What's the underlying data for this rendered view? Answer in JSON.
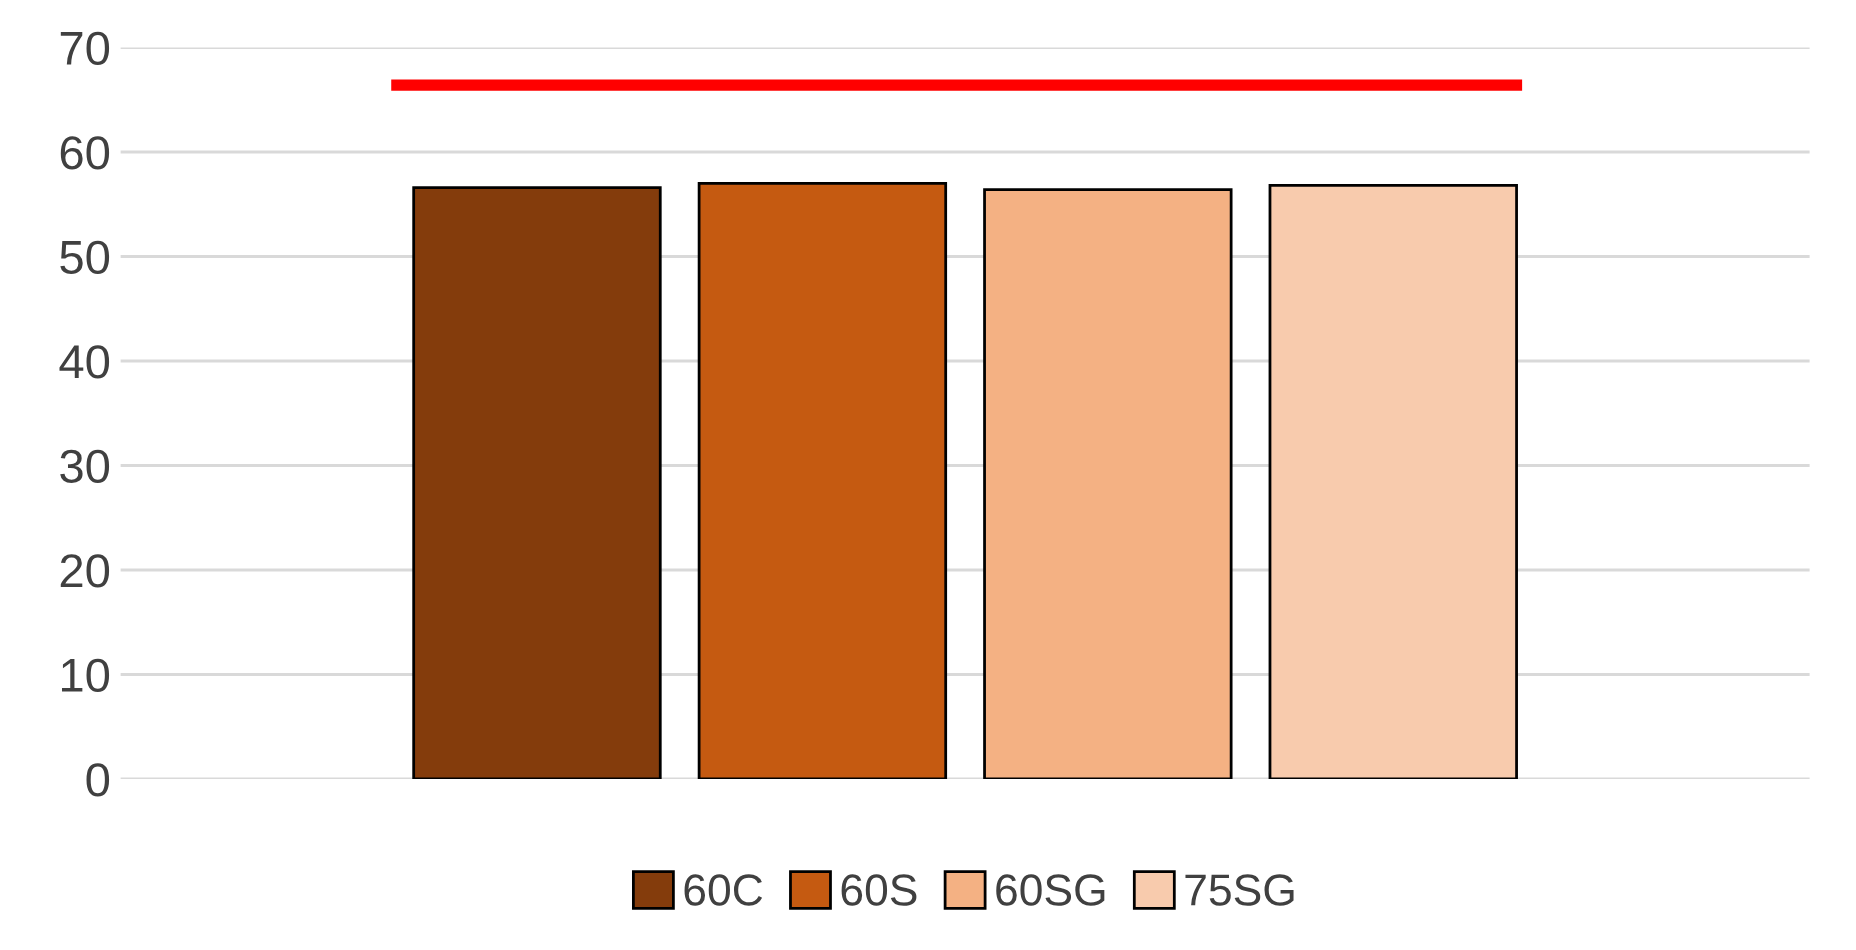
{
  "chart_data": {
    "type": "bar",
    "categories": [
      null
    ],
    "series": [
      {
        "name": "60C",
        "color": "#843c0c",
        "values": [
          56.6
        ]
      },
      {
        "name": "60S",
        "color": "#c55a11",
        "values": [
          57.0
        ]
      },
      {
        "name": "60SG",
        "color": "#f4b183",
        "values": [
          56.4
        ]
      },
      {
        "name": "75SG",
        "color": "#f8cbad",
        "values": [
          56.8
        ]
      }
    ],
    "ref_lines": [
      {
        "axis": "y",
        "value": 66.4,
        "color": "#ff0000",
        "line_style": "solid"
      }
    ],
    "ylim": [
      0,
      70
    ],
    "yticks": [
      0,
      10,
      20,
      30,
      40,
      50,
      60,
      70
    ],
    "grid": "y",
    "legend": "bottom"
  }
}
